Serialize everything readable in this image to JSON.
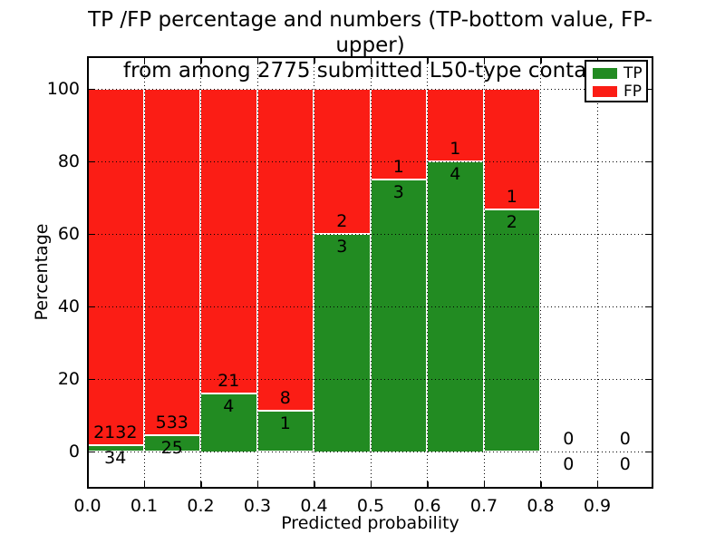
{
  "figure": {
    "title_line1": "TP /FP percentage and numbers (TP-bottom value, FP-upper)",
    "title_line2": "from among 2775 submitted L50-type contacts",
    "xlabel": "Predicted probability",
    "ylabel": "Percentage"
  },
  "legend": {
    "items": [
      {
        "label": "TP",
        "color": "#228b22"
      },
      {
        "label": "FP",
        "color": "#fb1d15"
      }
    ],
    "position": "upper right"
  },
  "chart_data": {
    "type": "bar",
    "stacked": true,
    "title": "TP /FP percentage and numbers (TP-bottom value, FP-upper) from among 2775 submitted L50-type contacts",
    "xlabel": "Predicted probability",
    "ylabel": "Percentage",
    "total_contacts": 2775,
    "xlim": [
      0.0,
      1.0
    ],
    "ylim": [
      -10.4,
      108.9
    ],
    "bin_width": 0.1,
    "grid": "dotted, both axes",
    "legend_position": "upper right",
    "x_tick_labels": [
      "0.0",
      "0.1",
      "0.2",
      "0.3",
      "0.4",
      "0.5",
      "0.6",
      "0.7",
      "0.8",
      "0.9"
    ],
    "y_ticks": [
      0,
      20,
      40,
      60,
      80,
      100
    ],
    "y_tick_labels": [
      "0",
      "20",
      "40",
      "60",
      "80",
      "100"
    ],
    "bin_starts": [
      0.0,
      0.1,
      0.2,
      0.3,
      0.4,
      0.5,
      0.6,
      0.7,
      0.8,
      0.9
    ],
    "series": [
      {
        "name": "TP",
        "color": "#228b22",
        "counts": [
          34,
          25,
          4,
          1,
          3,
          3,
          4,
          2,
          0,
          0
        ],
        "values_pct": [
          1.57,
          4.48,
          16.0,
          11.11,
          60.0,
          75.0,
          80.0,
          66.67,
          0,
          0
        ]
      },
      {
        "name": "FP",
        "color": "#fb1d15",
        "counts": [
          2132,
          533,
          21,
          8,
          2,
          1,
          1,
          1,
          0,
          0
        ],
        "values_pct": [
          98.43,
          95.52,
          84.0,
          88.89,
          40.0,
          25.0,
          20.0,
          33.33,
          0,
          0
        ]
      }
    ],
    "annotation_rule": "FP count printed above green top, TP count printed below green top, per bin"
  }
}
